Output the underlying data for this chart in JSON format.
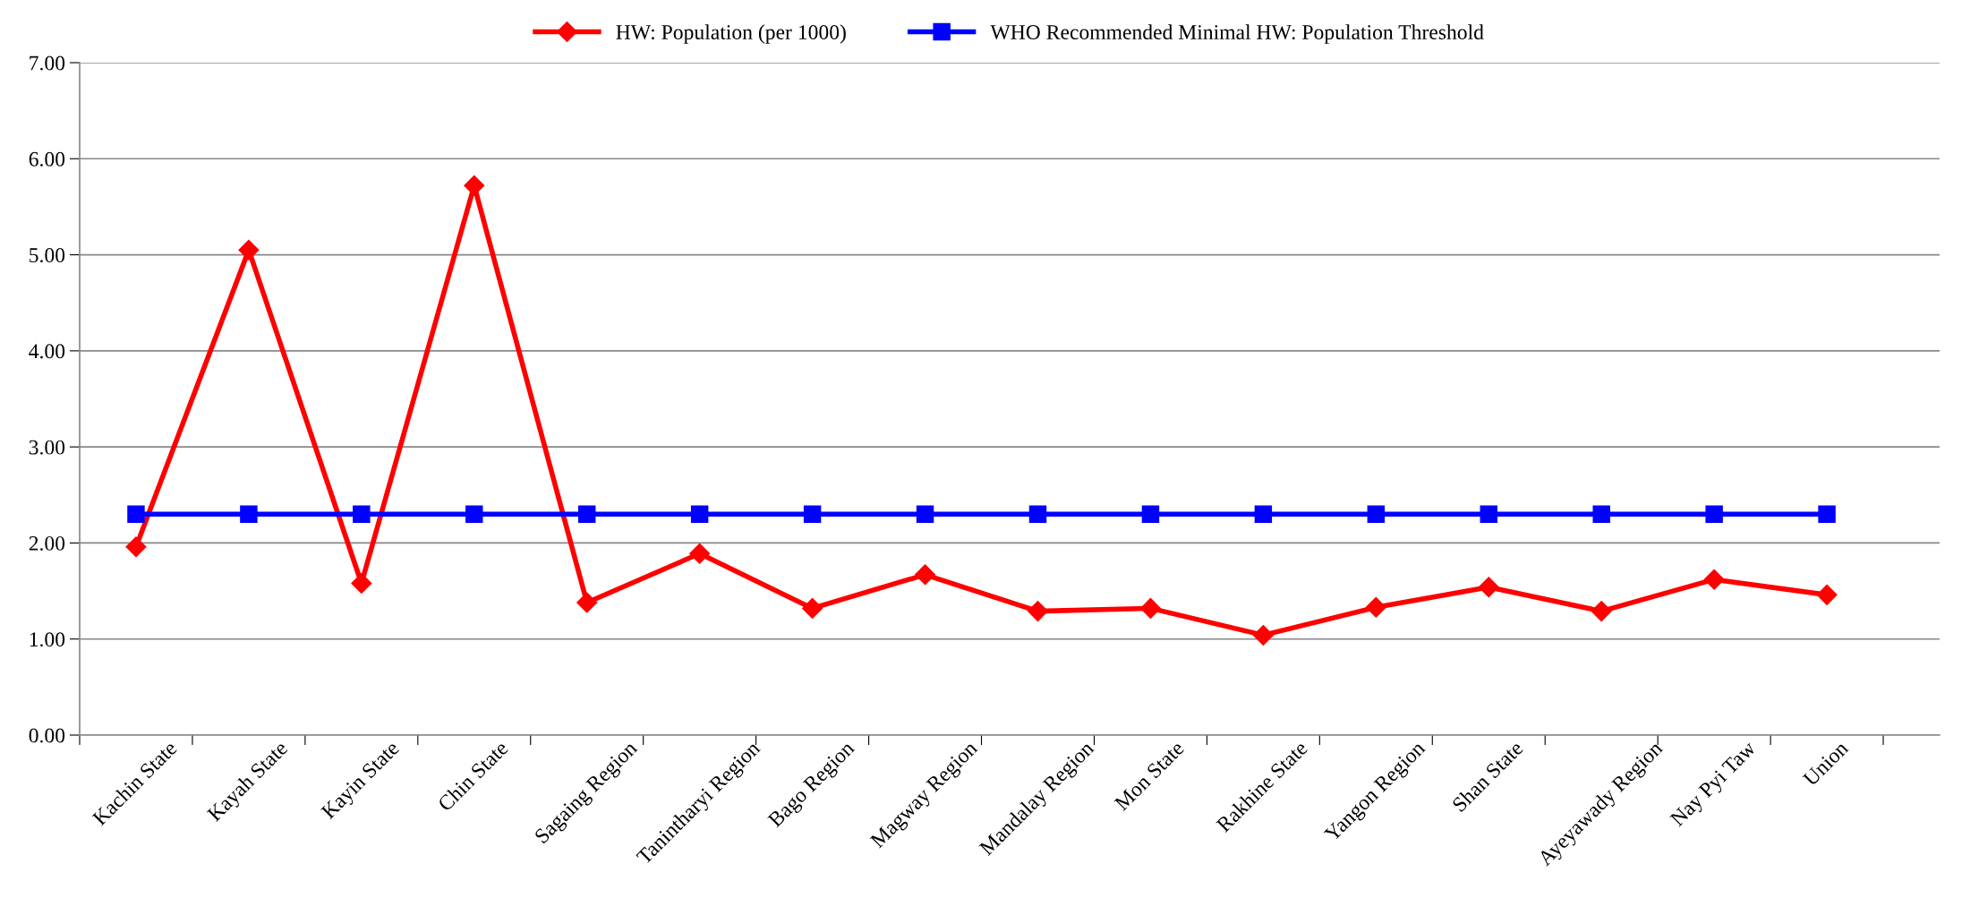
{
  "chart_data": {
    "type": "line",
    "categories": [
      "Kachin State",
      "Kayah State",
      "Kayin State",
      "Chin State",
      "Sagaing Region",
      "Tanintharyi Region",
      "Bago Region",
      "Magway Region",
      "Mandalay Region",
      "Mon State",
      "Rakhine State",
      "Yangon Region",
      "Shan State",
      "Ayeyawady Region",
      "Nay Pyi Taw",
      "Union"
    ],
    "series": [
      {
        "name": "HW: Population (per 1000)",
        "color": "#ff0000",
        "marker": "diamond",
        "values": [
          1.96,
          5.05,
          1.58,
          5.72,
          1.38,
          1.89,
          1.32,
          1.67,
          1.29,
          1.32,
          1.04,
          1.33,
          1.54,
          1.29,
          1.62,
          1.46
        ]
      },
      {
        "name": "WHO Recommended Minimal HW: Population Threshold",
        "color": "#0000ff",
        "marker": "square",
        "values": [
          2.3,
          2.3,
          2.3,
          2.3,
          2.3,
          2.3,
          2.3,
          2.3,
          2.3,
          2.3,
          2.3,
          2.3,
          2.3,
          2.3,
          2.3,
          2.3
        ]
      }
    ],
    "ylim": [
      0,
      7
    ],
    "yticks": [
      {
        "value": 0,
        "label": "0.00"
      },
      {
        "value": 1,
        "label": "1.00"
      },
      {
        "value": 2,
        "label": "2.00"
      },
      {
        "value": 3,
        "label": "3.00"
      },
      {
        "value": 4,
        "label": "4.00"
      },
      {
        "value": 5,
        "label": "5.00"
      },
      {
        "value": 6,
        "label": "6.00"
      },
      {
        "value": 7,
        "label": "7.00"
      }
    ],
    "grid": "y",
    "legend": "top",
    "line_style": "solid"
  }
}
